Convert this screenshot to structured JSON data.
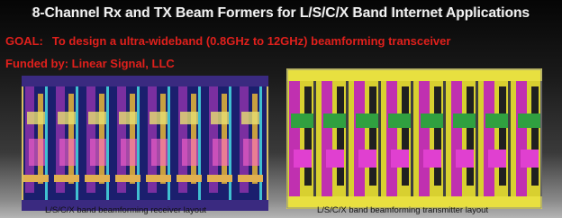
{
  "header": {
    "title": "8-Channel Rx and TX Beam Formers for L/S/C/X Band Internet Applications"
  },
  "goal": {
    "label": "GOAL:",
    "text": "To design a ultra-wideband (0.8GHz to 12GHz) beamforming transceiver"
  },
  "funding": "Funded by: Linear Signal, LLC",
  "figures": [
    {
      "caption": "L/S/C/X band beamforming receiver layout"
    },
    {
      "caption": "L/S/C/X band beamforming transmitter layout"
    }
  ]
}
